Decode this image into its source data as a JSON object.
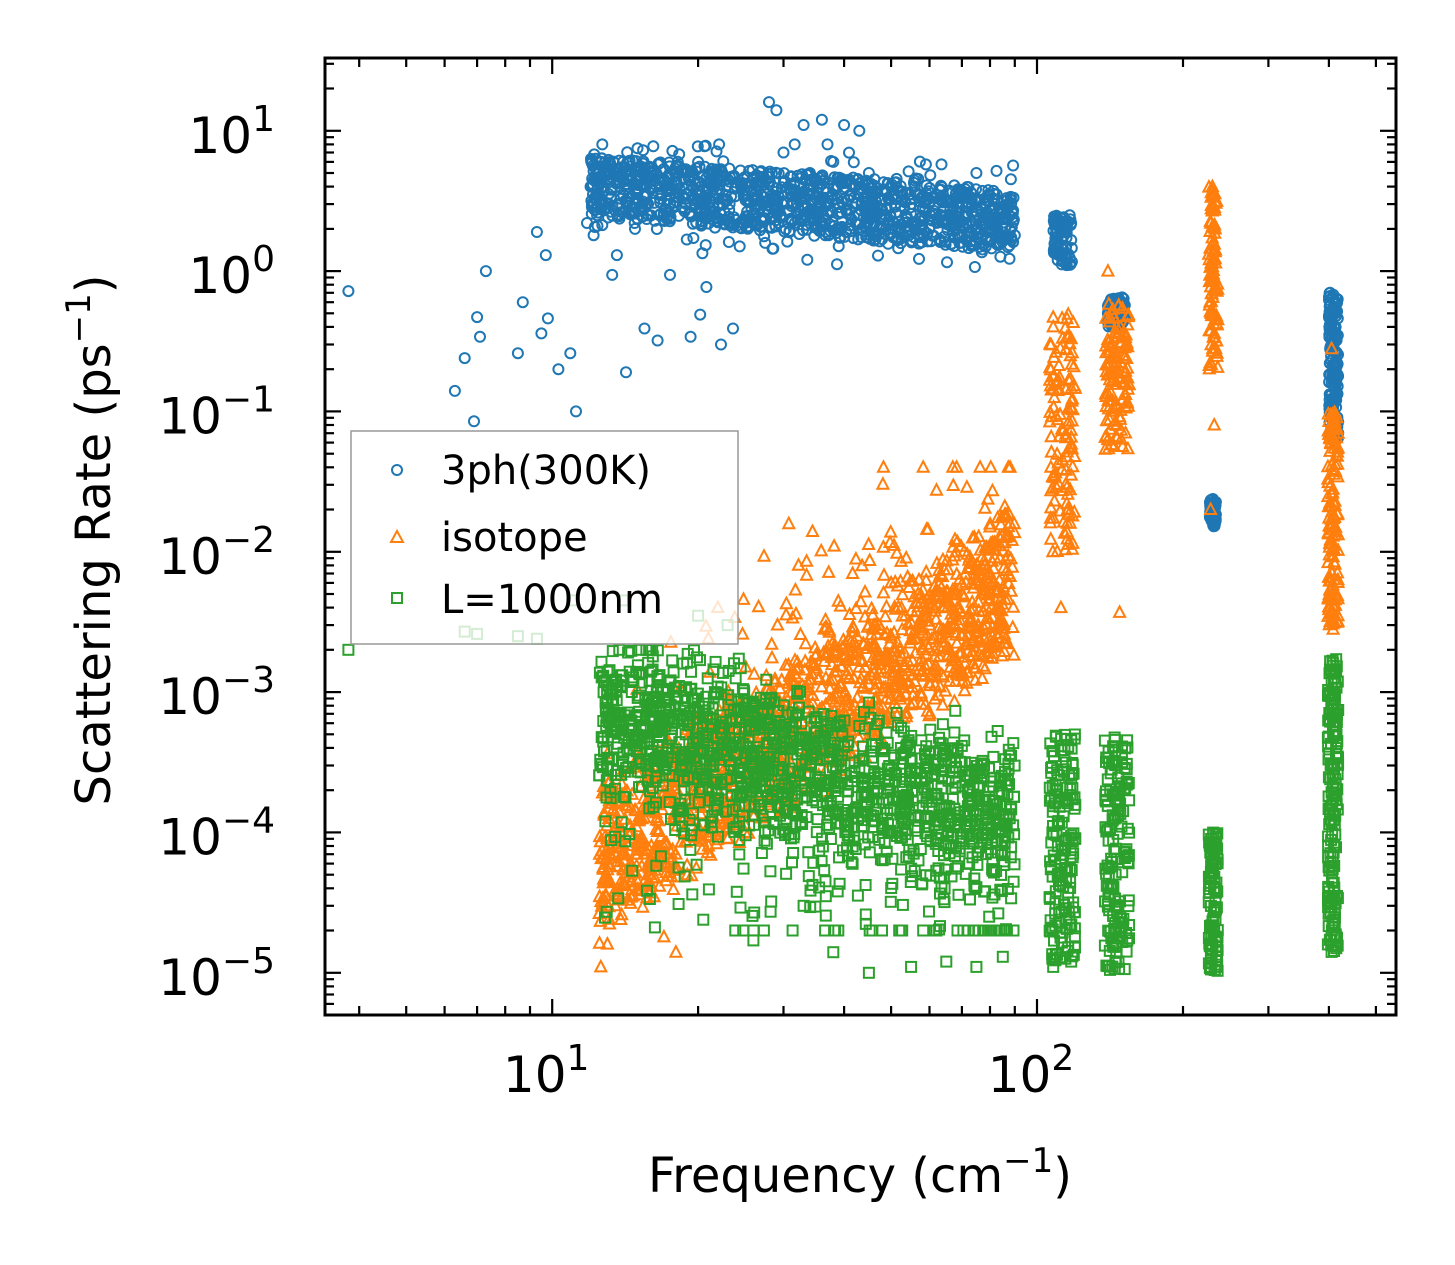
{
  "chart_data": {
    "type": "scatter",
    "xscale": "log",
    "yscale": "log",
    "xlim": [
      3.4,
      550
    ],
    "ylim": [
      5e-06,
      33
    ],
    "xlabel": {
      "main": "Frequency (cm",
      "sup": "−1",
      "tail": ")"
    },
    "ylabel": {
      "main": "Scattering Rate (ps",
      "sup": "−1",
      "tail": ")"
    },
    "x_ticks": [
      {
        "value": 10,
        "base": "10",
        "exp": "1"
      },
      {
        "value": 100,
        "base": "10",
        "exp": "2"
      }
    ],
    "y_ticks": [
      {
        "value": 10,
        "base": "10",
        "exp": "1"
      },
      {
        "value": 1,
        "base": "10",
        "exp": "0"
      },
      {
        "value": 0.1,
        "base": "10",
        "exp": "−1"
      },
      {
        "value": 0.01,
        "base": "10",
        "exp": "−2"
      },
      {
        "value": 0.001,
        "base": "10",
        "exp": "−3"
      },
      {
        "value": 0.0001,
        "base": "10",
        "exp": "−4"
      },
      {
        "value": 1e-05,
        "base": "10",
        "exp": "−5"
      }
    ],
    "legend_position": "center-left",
    "series": [
      {
        "name": "3ph(300K)",
        "marker": "circle",
        "color": "#1f77b4",
        "points": [
          [
            3.8,
            0.72
          ],
          [
            6.3,
            0.14
          ],
          [
            6.6,
            0.24
          ],
          [
            6.9,
            0.085
          ],
          [
            7.0,
            0.47
          ],
          [
            7.1,
            0.34
          ],
          [
            7.3,
            1.0
          ],
          [
            8.5,
            0.26
          ],
          [
            8.7,
            0.6
          ],
          [
            9.3,
            1.9
          ],
          [
            9.5,
            0.36
          ],
          [
            9.7,
            1.3
          ],
          [
            9.8,
            0.46
          ],
          [
            10.3,
            0.2
          ],
          [
            10.9,
            0.26
          ],
          [
            11.2,
            0.1
          ],
          [
            11.8,
            2.2
          ],
          [
            12.4,
            2.1
          ],
          [
            13.3,
            0.94
          ],
          [
            13.6,
            1.3
          ],
          [
            14.2,
            0.19
          ],
          [
            14.8,
            2.2
          ],
          [
            15.5,
            0.39
          ],
          [
            16.5,
            0.32
          ],
          [
            17.5,
            0.94
          ],
          [
            19.3,
            0.34
          ],
          [
            20.2,
            0.49
          ],
          [
            20.8,
            0.77
          ],
          [
            22.3,
            0.3
          ],
          [
            23.6,
            0.39
          ],
          [
            28,
            16
          ],
          [
            29,
            14
          ],
          [
            33,
            11
          ],
          [
            36,
            12
          ],
          [
            40,
            11
          ],
          [
            43,
            10
          ],
          [
            12,
            4
          ],
          [
            13,
            5.5
          ],
          [
            14,
            6
          ],
          [
            15,
            7.5
          ],
          [
            16,
            5
          ],
          [
            18,
            4.5
          ],
          [
            20,
            6
          ],
          [
            22,
            3
          ],
          [
            24,
            4
          ],
          [
            26,
            3.5
          ],
          [
            30,
            7
          ],
          [
            34,
            5
          ],
          [
            38,
            6
          ],
          [
            45,
            5
          ],
          [
            50,
            4
          ],
          [
            55,
            3
          ],
          [
            60,
            2
          ],
          [
            65,
            2.5
          ],
          [
            70,
            3
          ],
          [
            75,
            5
          ],
          [
            80,
            2
          ],
          [
            85,
            1.8
          ],
          [
            90,
            1.8
          ],
          [
            110,
            2.3
          ],
          [
            112,
            1.5
          ],
          [
            113,
            1.2
          ],
          [
            115,
            2
          ],
          [
            143,
            0.62
          ],
          [
            145,
            0.55
          ],
          [
            147,
            0.5
          ],
          [
            230,
            0.021
          ],
          [
            231,
            0.018
          ],
          [
            232,
            0.016
          ],
          [
            402,
            0.7
          ],
          [
            405,
            0.3
          ],
          [
            408,
            0.12
          ],
          [
            410,
            0.07
          ],
          [
            412,
            0.5
          ]
        ],
        "clusters": [
          {
            "x": [
              12,
              90
            ],
            "y": [
              1.0,
              8.0
            ],
            "n": 1300,
            "trend": "hump"
          },
          {
            "x": [
              108,
              118
            ],
            "y": [
              1.1,
              2.5
            ],
            "n": 90
          },
          {
            "x": [
              140,
              152
            ],
            "y": [
              0.4,
              0.65
            ],
            "n": 90
          },
          {
            "x": [
              227,
              234
            ],
            "y": [
              0.015,
              0.024
            ],
            "n": 50
          },
          {
            "x": [
              400,
              418
            ],
            "y": [
              0.06,
              0.7
            ],
            "n": 160
          }
        ]
      },
      {
        "name": "isotope",
        "marker": "triangle",
        "color": "#ff7f0e",
        "points": [
          [
            12.6,
            1.1e-05
          ],
          [
            13,
            1.6e-05
          ],
          [
            13.5,
            3e-05
          ],
          [
            14,
            5.5e-05
          ],
          [
            15,
            7e-05
          ],
          [
            16,
            6e-05
          ],
          [
            17,
            1.8e-05
          ],
          [
            18,
            1.4e-05
          ],
          [
            19,
            5e-05
          ],
          [
            21,
            8e-05
          ],
          [
            23,
            9e-05
          ],
          [
            25,
            0.0001
          ],
          [
            30,
            0.0003
          ],
          [
            40,
            0.0008
          ],
          [
            45,
            0.003
          ],
          [
            50,
            0.006
          ],
          [
            60,
            0.003
          ],
          [
            70,
            0.005
          ],
          [
            80,
            0.015
          ],
          [
            88,
            0.04
          ],
          [
            108,
            0.4
          ],
          [
            112,
            0.004
          ],
          [
            140,
            1.0
          ],
          [
            143,
            0.5
          ],
          [
            148,
            0.0037
          ],
          [
            230,
            4.0
          ],
          [
            228,
            0.02
          ],
          [
            232,
            0.08
          ],
          [
            405,
            0.28
          ],
          [
            408,
            0.0028
          ],
          [
            410,
            0.09
          ]
        ],
        "clusters": [
          {
            "x": [
              12.5,
              90
            ],
            "y": [
              2e-05,
              0.04
            ],
            "n": 1600,
            "trend": "rising"
          },
          {
            "x": [
              106,
              120
            ],
            "y": [
              0.01,
              0.5
            ],
            "n": 120
          },
          {
            "x": [
              138,
              155
            ],
            "y": [
              0.05,
              0.6
            ],
            "n": 120
          },
          {
            "x": [
              226,
              236
            ],
            "y": [
              0.2,
              4
            ],
            "n": 100
          },
          {
            "x": [
              398,
              418
            ],
            "y": [
              0.003,
              0.1
            ],
            "n": 140
          }
        ]
      },
      {
        "name": "L=1000nm",
        "marker": "square",
        "color": "#2ca02c",
        "points": [
          [
            3.8,
            0.002
          ],
          [
            6.6,
            0.0027
          ],
          [
            7,
            0.0026
          ],
          [
            8.5,
            0.0025
          ],
          [
            9.3,
            0.0024
          ],
          [
            11,
            0.0045
          ],
          [
            13,
            0.0014
          ],
          [
            14,
            0.0045
          ],
          [
            16,
            0.0014
          ],
          [
            20,
            0.0035
          ],
          [
            23,
            0.003
          ],
          [
            26,
            1.7e-05
          ],
          [
            33,
            3e-05
          ],
          [
            38,
            1.4e-05
          ],
          [
            45,
            1e-05
          ],
          [
            55,
            1.1e-05
          ],
          [
            65,
            1.2e-05
          ],
          [
            75,
            1.1e-05
          ],
          [
            85,
            1.3e-05
          ],
          [
            108,
            1.1e-05
          ]
        ],
        "clusters": [
          {
            "x": [
              12.5,
              90
            ],
            "y": [
              2e-05,
              0.002
            ],
            "n": 1500,
            "trend": "falling"
          },
          {
            "x": [
              106,
              120
            ],
            "y": [
              1.2e-05,
              0.0005
            ],
            "n": 160
          },
          {
            "x": [
              138,
              155
            ],
            "y": [
              1e-05,
              0.0005
            ],
            "n": 160
          },
          {
            "x": [
              226,
              236
            ],
            "y": [
              1e-05,
              0.0001
            ],
            "n": 100
          },
          {
            "x": [
              398,
              418
            ],
            "y": [
              1.4e-05,
              0.0018
            ],
            "n": 180
          }
        ]
      }
    ]
  }
}
